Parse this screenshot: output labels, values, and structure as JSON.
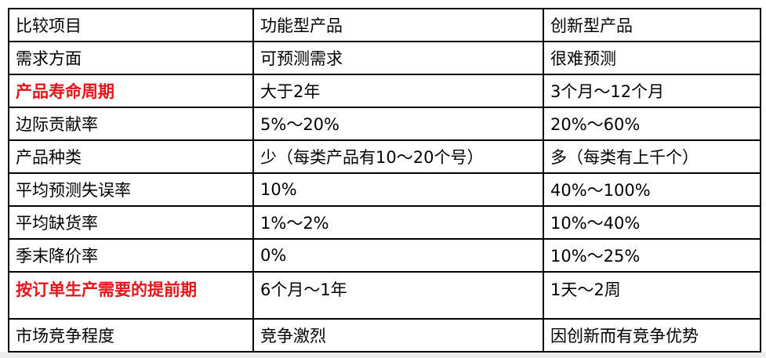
{
  "table": {
    "rows": [
      [
        "比较项目",
        "功能型产品",
        "创新型产品"
      ],
      [
        "需求方面",
        "可预测需求",
        "很难预测"
      ],
      [
        "产品寿命周期",
        "大于2年",
        "3个月～12个月"
      ],
      [
        "边际贡献率",
        "5%～20%",
        "20%～60%"
      ],
      [
        "产品种类",
        "少（每类产品有10～20个号）",
        "多（每类有上千个）"
      ],
      [
        "平均预测失误率",
        "10%",
        "40%～100%"
      ],
      [
        "平均缺货率",
        "1%～2%",
        "10%～40%"
      ],
      [
        "季末降价率",
        "0%",
        "10%～25%"
      ],
      [
        "按订单生产需要的提前期",
        "6个月～1年",
        "1天～2周"
      ],
      [
        "市场竞争程度",
        "竞争激烈",
        "因创新而有竞争优势"
      ]
    ]
  }
}
